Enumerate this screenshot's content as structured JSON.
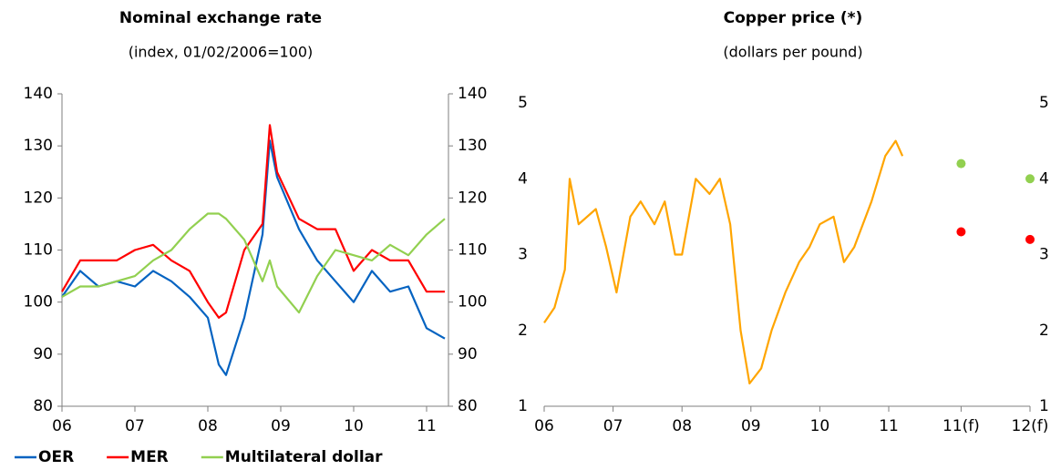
{
  "chart_data": [
    {
      "type": "line",
      "title": "Nominal exchange rate",
      "subtitle": "(index, 01/02/2006=100)",
      "x": [
        2006.0,
        2006.25,
        2006.5,
        2006.75,
        2007.0,
        2007.25,
        2007.5,
        2007.75,
        2008.0,
        2008.15,
        2008.25,
        2008.5,
        2008.75,
        2008.85,
        2008.95,
        2009.25,
        2009.5,
        2009.75,
        2010.0,
        2010.25,
        2010.5,
        2010.75,
        2011.0,
        2011.25
      ],
      "series": [
        {
          "name": "OER",
          "color": "#0563c1",
          "values": [
            101,
            106,
            103,
            104,
            103,
            106,
            104,
            101,
            97,
            88,
            86,
            97,
            113,
            131,
            124,
            114,
            108,
            104,
            100,
            106,
            102,
            103,
            95,
            93
          ]
        },
        {
          "name": "MER",
          "color": "#ff0000",
          "values": [
            102,
            108,
            108,
            108,
            110,
            111,
            108,
            106,
            100,
            97,
            98,
            110,
            115,
            134,
            125,
            116,
            114,
            114,
            106,
            110,
            108,
            108,
            102,
            102
          ]
        },
        {
          "name": "Multilateral dollar",
          "color": "#92d050",
          "values": [
            101,
            103,
            103,
            104,
            105,
            108,
            110,
            114,
            117,
            117,
            116,
            112,
            104,
            108,
            103,
            98,
            105,
            110,
            109,
            108,
            111,
            109,
            113,
            116
          ]
        }
      ],
      "xlim": [
        2006,
        2011.3
      ],
      "xticks": [
        {
          "value": 2006,
          "label": "06"
        },
        {
          "value": 2007,
          "label": "07"
        },
        {
          "value": 2008,
          "label": "08"
        },
        {
          "value": 2009,
          "label": "09"
        },
        {
          "value": 2010,
          "label": "10"
        },
        {
          "value": 2011,
          "label": "11"
        }
      ],
      "ylim": [
        80,
        140
      ],
      "yticks": [
        80,
        90,
        100,
        110,
        120,
        130,
        140
      ],
      "y2lim": [
        80,
        140
      ],
      "y2ticks": [
        80,
        90,
        100,
        110,
        120,
        130,
        140
      ],
      "legend": "bottom"
    },
    {
      "type": "line",
      "title": "Copper price (*)",
      "subtitle": "(dollars per pound)",
      "x": [
        2006.0,
        2006.15,
        2006.3,
        2006.37,
        2006.5,
        2006.75,
        2006.9,
        2007.05,
        2007.25,
        2007.4,
        2007.6,
        2007.75,
        2007.9,
        2008.0,
        2008.2,
        2008.4,
        2008.55,
        2008.7,
        2008.85,
        2008.98,
        2009.15,
        2009.3,
        2009.5,
        2009.7,
        2009.85,
        2010.0,
        2010.2,
        2010.35,
        2010.5,
        2010.75,
        2010.95,
        2011.1,
        2011.2
      ],
      "series": [
        {
          "color": "#ffa500",
          "values": [
            2.1,
            2.3,
            2.8,
            4.0,
            3.4,
            3.6,
            3.1,
            2.5,
            3.5,
            3.7,
            3.4,
            3.7,
            3.0,
            3.0,
            4.0,
            3.8,
            4.0,
            3.4,
            2.0,
            1.3,
            1.5,
            2.0,
            2.5,
            2.9,
            3.1,
            3.4,
            3.5,
            2.9,
            3.1,
            3.7,
            4.3,
            4.5,
            4.3
          ]
        }
      ],
      "forecasts": [
        {
          "color": "#92d050",
          "x": [
            2012.05,
            2013.05
          ],
          "values": [
            4.2,
            4.0
          ]
        },
        {
          "color": "#ff0000",
          "x": [
            2012.05,
            2013.05
          ],
          "values": [
            3.3,
            3.2
          ]
        }
      ],
      "xlim": [
        2006,
        2013.05
      ],
      "xticks": [
        {
          "value": 2006,
          "label": "06"
        },
        {
          "value": 2007,
          "label": "07"
        },
        {
          "value": 2008,
          "label": "08"
        },
        {
          "value": 2009,
          "label": "09"
        },
        {
          "value": 2010,
          "label": "10"
        },
        {
          "value": 2011,
          "label": "11"
        },
        {
          "value": 2012.05,
          "label": "11(f)"
        },
        {
          "value": 2013.05,
          "label": "12(f)"
        }
      ],
      "ylim": [
        1,
        5
      ],
      "yticks": [
        1,
        2,
        3,
        4,
        5
      ],
      "y2lim": [
        1,
        5
      ],
      "y2ticks": [
        1,
        2,
        3,
        4,
        5
      ]
    }
  ]
}
